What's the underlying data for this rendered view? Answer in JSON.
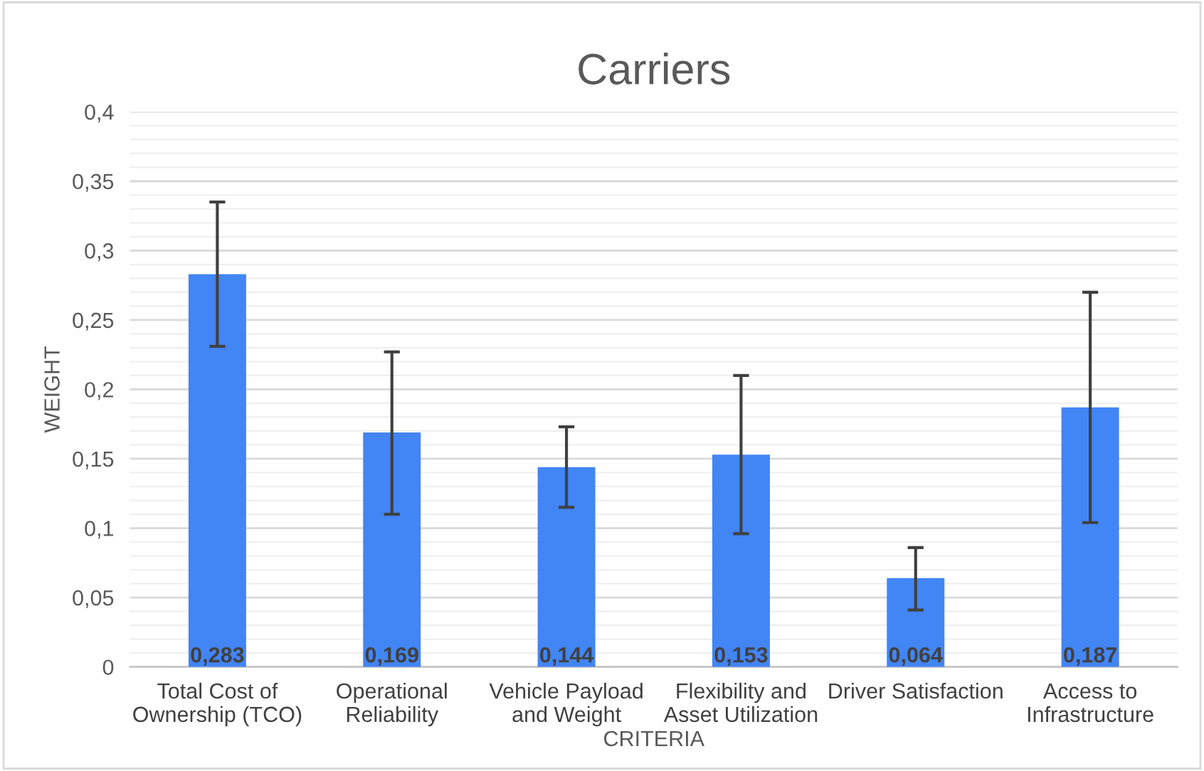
{
  "chart_data": {
    "type": "bar",
    "title": "Carriers",
    "xlabel": "CRITERIA",
    "ylabel": "WEIGHT",
    "categories": [
      "Total Cost of\nOwnership (TCO)",
      "Operational\nReliability",
      "Vehicle Payload\nand Weight",
      "Flexibility and\nAsset Utilization",
      "Driver Satisfaction",
      "Access to\nInfrastructure"
    ],
    "series": [
      {
        "color": "#4285f4",
        "values": [
          0.283,
          0.169,
          0.144,
          0.153,
          0.064,
          0.187
        ],
        "errors": [
          [
            0.231,
            0.335
          ],
          [
            0.11,
            0.227
          ],
          [
            0.115,
            0.173
          ],
          [
            0.096,
            0.21
          ],
          [
            0.041,
            0.086
          ],
          [
            0.104,
            0.27
          ]
        ],
        "value_labels": [
          "0,283",
          "0,169",
          "0,144",
          "0,153",
          "0,064",
          "0,187"
        ]
      }
    ],
    "ylim": [
      0,
      0.4
    ],
    "yticks": [
      0,
      {
        "value": 0.05,
        "label": "0,05"
      },
      {
        "value": 0.1,
        "label": "0,1"
      },
      {
        "value": 0.15,
        "label": "0,15"
      },
      {
        "value": 0.2,
        "label": "0,2"
      },
      {
        "value": 0.25,
        "label": "0,25"
      },
      {
        "value": 0.3,
        "label": "0,3"
      },
      {
        "value": 0.35,
        "label": "0,35"
      },
      {
        "value": 0.4,
        "label": "0,4"
      }
    ],
    "grid": "y",
    "legend": false
  }
}
